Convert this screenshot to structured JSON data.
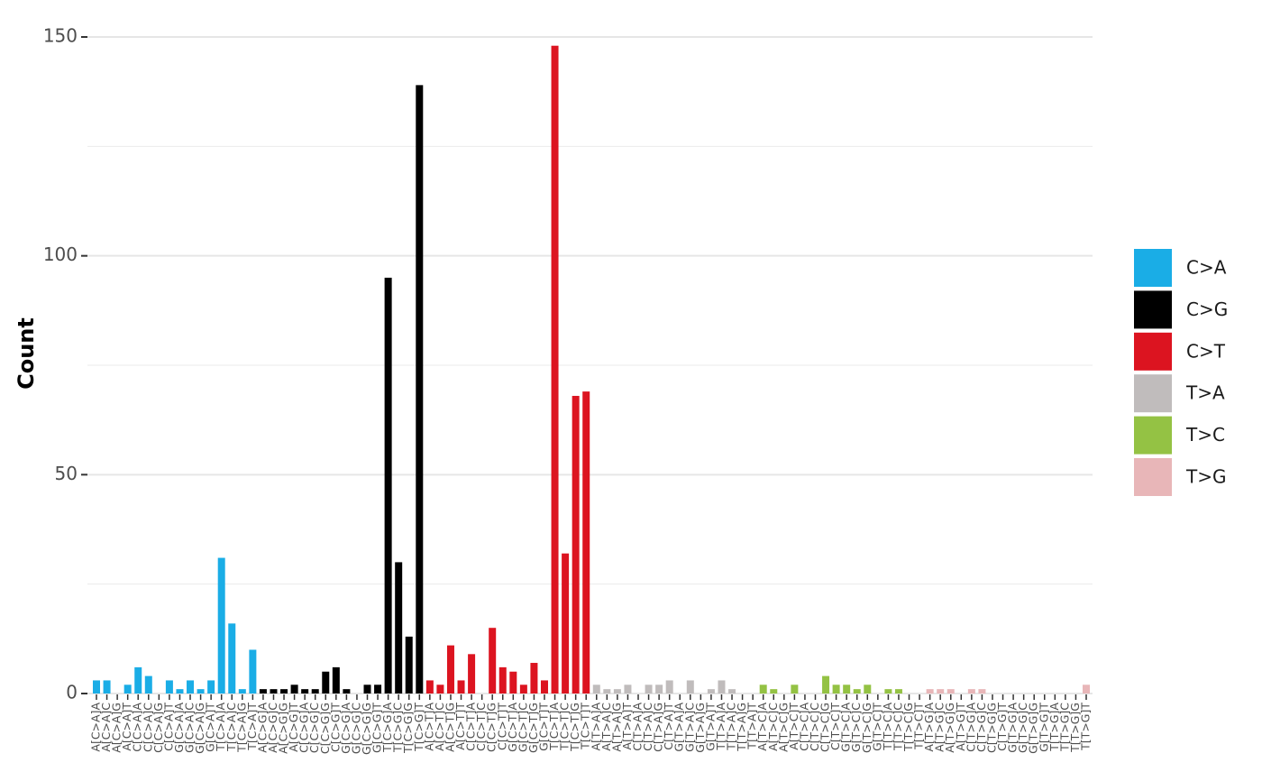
{
  "chart_data": {
    "type": "bar",
    "y_label": "Count",
    "categories": [
      "A[C>A]A",
      "A[C>A]C",
      "A[C>A]G",
      "A[C>A]T",
      "C[C>A]A",
      "C[C>A]C",
      "C[C>A]G",
      "C[C>A]T",
      "G[C>A]A",
      "G[C>A]C",
      "G[C>A]G",
      "G[C>A]T",
      "T[C>A]A",
      "T[C>A]C",
      "T[C>A]G",
      "T[C>A]T",
      "A[C>G]A",
      "A[C>G]C",
      "A[C>G]G",
      "A[C>G]T",
      "C[C>G]A",
      "C[C>G]C",
      "C[C>G]G",
      "C[C>G]T",
      "G[C>G]A",
      "G[C>G]C",
      "G[C>G]G",
      "G[C>G]T",
      "T[C>G]A",
      "T[C>G]C",
      "T[C>G]G",
      "T[C>G]T",
      "A[C>T]A",
      "A[C>T]C",
      "A[C>T]G",
      "A[C>T]T",
      "C[C>T]A",
      "C[C>T]C",
      "C[C>T]G",
      "C[C>T]T",
      "G[C>T]A",
      "G[C>T]C",
      "G[C>T]G",
      "G[C>T]T",
      "T[C>T]A",
      "T[C>T]C",
      "T[C>T]G",
      "T[C>T]T",
      "A[T>A]A",
      "A[T>A]C",
      "A[T>A]G",
      "A[T>A]T",
      "C[T>A]A",
      "C[T>A]C",
      "C[T>A]G",
      "C[T>A]T",
      "G[T>A]A",
      "G[T>A]C",
      "G[T>A]G",
      "G[T>A]T",
      "T[T>A]A",
      "T[T>A]C",
      "T[T>A]G",
      "T[T>A]T",
      "A[T>C]A",
      "A[T>C]C",
      "A[T>C]G",
      "A[T>C]T",
      "C[T>C]A",
      "C[T>C]C",
      "C[T>C]G",
      "C[T>C]T",
      "G[T>C]A",
      "G[T>C]C",
      "G[T>C]G",
      "G[T>C]T",
      "T[T>C]A",
      "T[T>C]C",
      "T[T>C]G",
      "T[T>C]T",
      "A[T>G]A",
      "A[T>G]C",
      "A[T>G]G",
      "A[T>G]T",
      "C[T>G]A",
      "C[T>G]C",
      "C[T>G]G",
      "C[T>G]T",
      "G[T>G]A",
      "G[T>G]C",
      "G[T>G]G",
      "G[T>G]T",
      "T[T>G]A",
      "T[T>G]C",
      "T[T>G]G",
      "T[T>G]T"
    ],
    "series": [
      {
        "name": "C>A",
        "color": "#1aade6",
        "values": [
          3,
          3,
          0,
          2,
          6,
          4,
          0,
          3,
          1,
          3,
          1,
          3,
          31,
          16,
          1,
          10,
          null,
          null,
          null,
          null,
          null,
          null,
          null,
          null,
          null,
          null,
          null,
          null,
          null,
          null,
          null,
          null,
          null,
          null,
          null,
          null,
          null,
          null,
          null,
          null,
          null,
          null,
          null,
          null,
          null,
          null,
          null,
          null,
          null,
          null,
          null,
          null,
          null,
          null,
          null,
          null,
          null,
          null,
          null,
          null,
          null,
          null,
          null,
          null,
          null,
          null,
          null,
          null,
          null,
          null,
          null,
          null,
          null,
          null,
          null,
          null,
          null,
          null,
          null,
          null,
          null,
          null,
          null,
          null,
          null,
          null,
          null,
          null,
          null,
          null,
          null,
          null,
          null,
          null,
          null,
          null
        ]
      },
      {
        "name": "C>G",
        "color": "#000000",
        "values": [
          null,
          null,
          null,
          null,
          null,
          null,
          null,
          null,
          null,
          null,
          null,
          null,
          null,
          null,
          null,
          null,
          1,
          1,
          1,
          2,
          1,
          1,
          5,
          6,
          1,
          0,
          2,
          2,
          95,
          30,
          13,
          139,
          null,
          null,
          null,
          null,
          null,
          null,
          null,
          null,
          null,
          null,
          null,
          null,
          null,
          null,
          null,
          null,
          null,
          null,
          null,
          null,
          null,
          null,
          null,
          null,
          null,
          null,
          null,
          null,
          null,
          null,
          null,
          null,
          null,
          null,
          null,
          null,
          null,
          null,
          null,
          null,
          null,
          null,
          null,
          null,
          null,
          null,
          null,
          null,
          null,
          null,
          null,
          null,
          null,
          null,
          null,
          null,
          null,
          null,
          null,
          null,
          null,
          null,
          null,
          null
        ]
      },
      {
        "name": "C>T",
        "color": "#dc1420",
        "values": [
          null,
          null,
          null,
          null,
          null,
          null,
          null,
          null,
          null,
          null,
          null,
          null,
          null,
          null,
          null,
          null,
          null,
          null,
          null,
          null,
          null,
          null,
          null,
          null,
          null,
          null,
          null,
          null,
          null,
          null,
          null,
          null,
          3,
          2,
          11,
          3,
          9,
          0,
          15,
          6,
          5,
          2,
          7,
          3,
          148,
          32,
          68,
          69,
          null,
          null,
          null,
          null,
          null,
          null,
          null,
          null,
          null,
          null,
          null,
          null,
          null,
          null,
          null,
          null,
          null,
          null,
          null,
          null,
          null,
          null,
          null,
          null,
          null,
          null,
          null,
          null,
          null,
          null,
          null,
          null,
          null,
          null,
          null,
          null,
          null,
          null,
          null,
          null,
          null,
          null,
          null,
          null,
          null,
          null,
          null,
          null
        ]
      },
      {
        "name": "T>A",
        "color": "#c0bcbc",
        "values": [
          null,
          null,
          null,
          null,
          null,
          null,
          null,
          null,
          null,
          null,
          null,
          null,
          null,
          null,
          null,
          null,
          null,
          null,
          null,
          null,
          null,
          null,
          null,
          null,
          null,
          null,
          null,
          null,
          null,
          null,
          null,
          null,
          null,
          null,
          null,
          null,
          null,
          null,
          null,
          null,
          null,
          null,
          null,
          null,
          null,
          null,
          null,
          null,
          2,
          1,
          1,
          2,
          0,
          2,
          2,
          3,
          0,
          3,
          0,
          1,
          3,
          1,
          0,
          0,
          null,
          null,
          null,
          null,
          null,
          null,
          null,
          null,
          null,
          null,
          null,
          null,
          null,
          null,
          null,
          null,
          null,
          null,
          null,
          null,
          null,
          null,
          null,
          null,
          null,
          null,
          null,
          null,
          null,
          null,
          null,
          null
        ]
      },
      {
        "name": "T>C",
        "color": "#94c244",
        "values": [
          null,
          null,
          null,
          null,
          null,
          null,
          null,
          null,
          null,
          null,
          null,
          null,
          null,
          null,
          null,
          null,
          null,
          null,
          null,
          null,
          null,
          null,
          null,
          null,
          null,
          null,
          null,
          null,
          null,
          null,
          null,
          null,
          null,
          null,
          null,
          null,
          null,
          null,
          null,
          null,
          null,
          null,
          null,
          null,
          null,
          null,
          null,
          null,
          null,
          null,
          null,
          null,
          null,
          null,
          null,
          null,
          null,
          null,
          null,
          null,
          null,
          null,
          null,
          null,
          2,
          1,
          0,
          2,
          0,
          0,
          4,
          2,
          2,
          1,
          2,
          0,
          1,
          1,
          0,
          0,
          null,
          null,
          null,
          null,
          null,
          null,
          null,
          null,
          null,
          null,
          null,
          null,
          null,
          null,
          null,
          null
        ]
      },
      {
        "name": "T>G",
        "color": "#e8b6b8",
        "values": [
          null,
          null,
          null,
          null,
          null,
          null,
          null,
          null,
          null,
          null,
          null,
          null,
          null,
          null,
          null,
          null,
          null,
          null,
          null,
          null,
          null,
          null,
          null,
          null,
          null,
          null,
          null,
          null,
          null,
          null,
          null,
          null,
          null,
          null,
          null,
          null,
          null,
          null,
          null,
          null,
          null,
          null,
          null,
          null,
          null,
          null,
          null,
          null,
          null,
          null,
          null,
          null,
          null,
          null,
          null,
          null,
          null,
          null,
          null,
          null,
          null,
          null,
          null,
          null,
          null,
          null,
          null,
          null,
          null,
          null,
          null,
          null,
          null,
          null,
          null,
          null,
          null,
          null,
          null,
          null,
          1,
          1,
          1,
          0,
          1,
          1,
          0,
          0,
          0,
          0,
          0,
          0,
          0,
          0,
          0,
          2
        ]
      }
    ],
    "ylim": [
      0,
      150
    ],
    "yticks": [
      0,
      50,
      100,
      150
    ],
    "grid": true,
    "legend": "right"
  }
}
